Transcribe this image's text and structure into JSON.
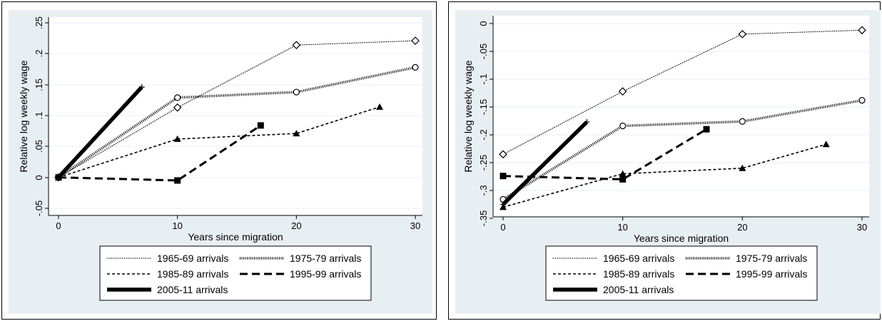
{
  "colors": {
    "panel_background": "#e8eff2",
    "plot_background": "#ffffff",
    "grid": "#e8eff2",
    "series": "#000000"
  },
  "chart_data": [
    {
      "type": "line",
      "xlabel": "Years since migration",
      "ylabel": "Relative log weekly wage",
      "xlim": [
        0,
        30
      ],
      "ylim": [
        -0.05,
        0.25
      ],
      "xticks": [
        "0",
        "10",
        "20",
        "30"
      ],
      "yticks": [
        "-.05",
        "0",
        ".05",
        ".1",
        ".15",
        ".2",
        ".25"
      ],
      "grid": true,
      "legend_position": "bottom",
      "series": [
        {
          "name": "1965-69 arrivals",
          "x": [
            0,
            10,
            20,
            30
          ],
          "y": [
            0.0,
            0.113,
            0.214,
            0.221
          ],
          "marker": "diamond",
          "line": "thin-dotted"
        },
        {
          "name": "1975-79 arrivals",
          "x": [
            0,
            10,
            20,
            30
          ],
          "y": [
            0.0,
            0.129,
            0.138,
            0.178
          ],
          "marker": "circle",
          "line": "thick-dotted"
        },
        {
          "name": "1985-89 arrivals",
          "x": [
            0,
            10,
            20,
            27
          ],
          "y": [
            0.0,
            0.062,
            0.071,
            0.114
          ],
          "marker": "triangle",
          "line": "short-dash"
        },
        {
          "name": "1995-99 arrivals",
          "x": [
            0,
            10,
            17
          ],
          "y": [
            0.0,
            -0.005,
            0.084
          ],
          "marker": "square",
          "line": "long-dash"
        },
        {
          "name": "2005-11 arrivals",
          "x": [
            0,
            7
          ],
          "y": [
            0.0,
            0.146
          ],
          "marker": "plus",
          "line": "thick-solid"
        }
      ]
    },
    {
      "type": "line",
      "xlabel": "Years since migration",
      "ylabel": "Relative log weekly wage",
      "xlim": [
        0,
        30
      ],
      "ylim": [
        -0.35,
        0.0
      ],
      "xticks": [
        "0",
        "10",
        "20",
        "30"
      ],
      "yticks": [
        "0",
        "-.05",
        "-.1",
        "-.15",
        "-.2",
        "-.25",
        "-.3",
        "-.35"
      ],
      "grid": true,
      "legend_position": "bottom",
      "series": [
        {
          "name": "1965-69 arrivals",
          "x": [
            0,
            10,
            20,
            30
          ],
          "y": [
            -0.235,
            -0.122,
            -0.019,
            -0.012
          ],
          "marker": "diamond",
          "line": "thin-dotted"
        },
        {
          "name": "1975-79 arrivals",
          "x": [
            0,
            10,
            20,
            30
          ],
          "y": [
            -0.316,
            -0.184,
            -0.176,
            -0.138
          ],
          "marker": "circle",
          "line": "thick-dotted"
        },
        {
          "name": "1985-89 arrivals",
          "x": [
            0,
            10,
            20,
            27
          ],
          "y": [
            -0.33,
            -0.27,
            -0.26,
            -0.217
          ],
          "marker": "triangle",
          "line": "short-dash"
        },
        {
          "name": "1995-99 arrivals",
          "x": [
            0,
            10,
            17
          ],
          "y": [
            -0.274,
            -0.28,
            -0.19
          ],
          "marker": "square",
          "line": "long-dash"
        },
        {
          "name": "2005-11 arrivals",
          "x": [
            0,
            7
          ],
          "y": [
            -0.325,
            -0.177
          ],
          "marker": "plus",
          "line": "thick-solid"
        }
      ]
    }
  ]
}
